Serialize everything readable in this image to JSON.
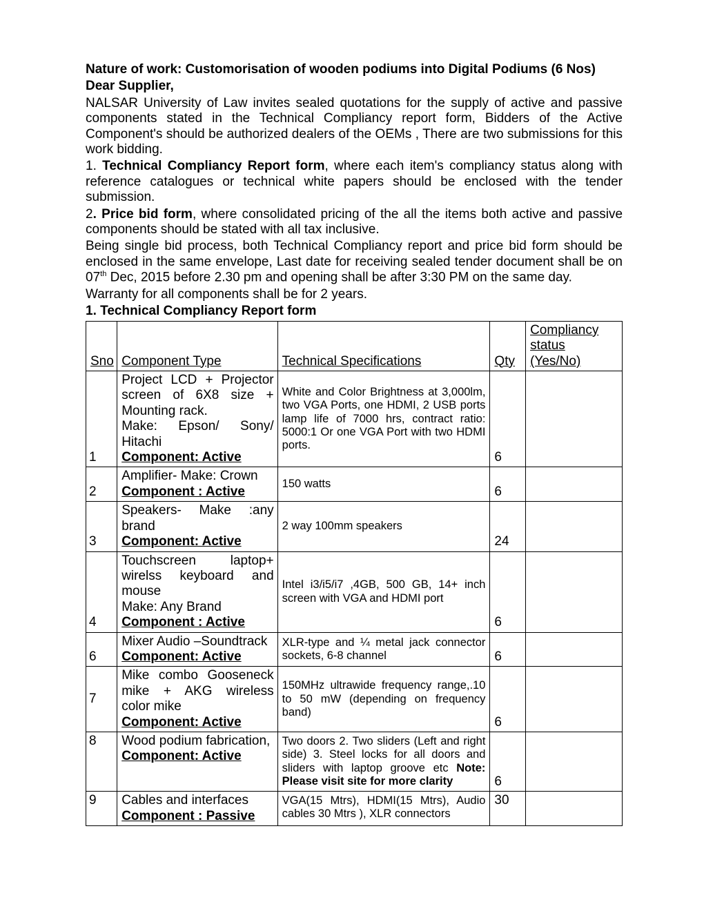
{
  "header": {
    "line1": "Nature of work:  Customorisation of wooden podiums into Digital Podiums (6 Nos)",
    "line2": "Dear Supplier,"
  },
  "paras": {
    "p1": "NALSAR University of Law invites sealed quotations for the supply of active and passive components stated in the Technical Compliancy report form, Bidders of the Active Component's should be authorized dealers of the OEMs , There are two submissions for this work bidding.",
    "p2a": "1. ",
    "p2b": "Technical Compliancy Report form",
    "p2c": ", where each item's compliancy status along with reference catalogues or technical white papers should be enclosed with the tender submission.",
    "p3a": "2",
    "p3b": ". Price bid form",
    "p3c": ", where consolidated pricing of the all the items both active and passive components should be stated with all tax inclusive.",
    "p4a": "Being single bid process, both Technical Compliancy report and price bid form should be enclosed in the same envelope,  Last date for receiving sealed tender document shall be on 07",
    "p4sup": "th",
    "p4b": " Dec, 2015 before 2.30 pm and opening shall be after 3:30 PM on the same day.",
    "p5": "Warranty for all components shall be for 2 years.",
    "form_title_a": "1",
    "form_title_b": ". Technical Compliancy Report form"
  },
  "table": {
    "headers": {
      "sno": "Sno",
      "comp": "Component Type",
      "spec": "Technical Specifications",
      "qty": "Qty",
      "status": "Compliancy status (Yes/No)"
    },
    "rows": [
      {
        "sno": "1",
        "comp_lines": "Project LCD + Projector screen of 6X8 size + Mounting rack.",
        "comp_make": "Make: Epson/ Sony/ Hitachi",
        "comp_tag": "Component: Active",
        "spec": "White and Color Brightness at 3,000lm, two VGA Ports, one HDMI, 2 USB ports lamp life of 7000 hrs, contract ratio: 5000:1 Or one VGA Port with two HDMI ports.",
        "qty": "6"
      },
      {
        "sno": "2",
        "comp_lines": "Amplifier- Make: Crown",
        "comp_tag": "Component : Active",
        "spec": "150 watts",
        "qty": "6"
      },
      {
        "sno": "3",
        "comp_lines": "Speakers- Make :any brand",
        "comp_tag": "Component: Active",
        "spec": "2 way  100mm speakers",
        "qty": "24"
      },
      {
        "sno": "4",
        "comp_lines": "Touchscreen laptop+ wirelss keyboard and mouse",
        "comp_make": "Make: Any Brand",
        "comp_tag": "Component : Active",
        "spec": "Intel i3/i5/i7 ,4GB, 500 GB, 14+ inch screen  with VGA and HDMI port",
        "qty": "6"
      },
      {
        "sno": "6",
        "comp_lines": "Mixer Audio –Soundtrack",
        "comp_tag": "Component: Active",
        "spec": "XLR-type and ¼ metal jack connector sockets, 6-8 channel",
        "qty": "6"
      },
      {
        "sno": "7",
        "comp_lines": "Mike combo Gooseneck mike + AKG wireless color mike",
        "comp_tag": "Component: Active",
        "spec": "150MHz ultrawide frequency range,.10 to 50 mW (depending on frequency band)",
        "qty": "6"
      },
      {
        "sno": "8",
        "comp_lines": "Wood podium fabrication,",
        "comp_tag": "Component: Active",
        "spec_plain": "Two doors 2. Two sliders (Left and right side) 3. Steel  locks for all doors and sliders with laptop groove etc",
        "spec_bold": "Note: Please visit site for more clarity",
        "qty": "6"
      },
      {
        "sno": "9",
        "comp_lines": "Cables and interfaces",
        "comp_tag": "Component : Passive",
        "spec": "VGA(15 Mtrs), HDMI(15 Mtrs), Audio cables 30 Mtrs ), XLR connectors",
        "qty": "30"
      }
    ]
  },
  "style": {
    "page_bg": "#ffffff",
    "text_color": "#000000",
    "border_color": "#000000",
    "body_fontsize": 19,
    "spec_fontsize": 16.5,
    "font_family": "Arial"
  }
}
